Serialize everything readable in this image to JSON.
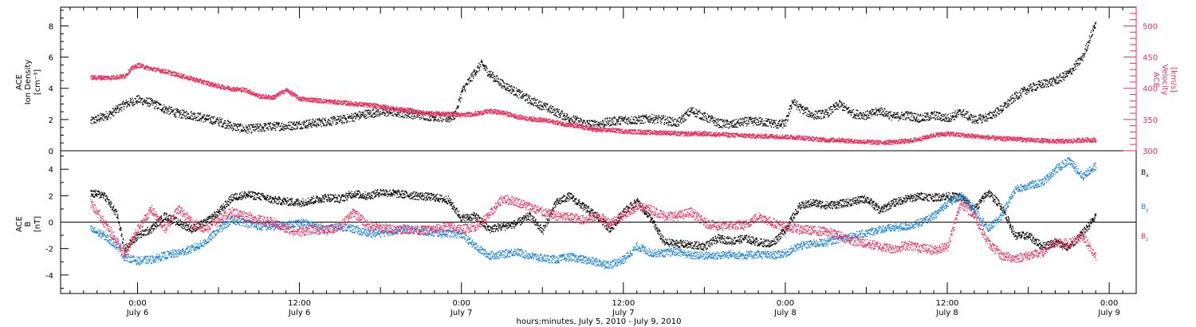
{
  "chart_data": [
    {
      "type": "scatter",
      "panel": "plasma",
      "ylabel_left": [
        "ACE",
        "Ion Density",
        "[cm⁻³]"
      ],
      "ylabel_right": [
        "ACE",
        "Velocity",
        "[km/s]"
      ],
      "y_left_lim": [
        0,
        9.2
      ],
      "y_left_ticks": [
        0,
        2,
        4,
        6,
        8
      ],
      "y_right_lim": [
        300,
        530
      ],
      "y_right_ticks": [
        300,
        350,
        400,
        450,
        500
      ],
      "series": [
        {
          "name": "Ion Density",
          "axis": "left",
          "color": "#000000",
          "x_hours": [
            -3.5,
            -2,
            -1,
            0,
            1,
            2,
            3,
            4,
            5,
            6,
            7,
            8,
            9,
            10,
            11,
            12,
            13,
            14,
            15,
            16,
            17,
            18,
            19,
            20,
            21,
            22,
            23,
            23.5,
            24,
            25,
            25.5,
            26,
            27,
            28,
            29,
            30,
            31,
            32,
            33,
            34,
            35,
            36,
            37,
            38,
            39,
            40,
            41,
            42,
            43,
            44,
            45,
            46,
            47,
            47.5,
            48,
            48.5,
            49,
            50,
            51,
            52,
            53,
            54,
            55,
            56,
            57,
            58,
            59,
            60,
            61,
            62,
            63,
            64,
            65,
            66,
            67,
            68,
            69,
            70,
            71
          ],
          "values": [
            1.9,
            2.4,
            3.0,
            3.3,
            3.1,
            2.7,
            2.4,
            2.3,
            2.1,
            1.9,
            1.6,
            1.4,
            1.5,
            1.6,
            1.6,
            1.7,
            1.8,
            1.9,
            2.0,
            2.2,
            2.4,
            2.5,
            2.5,
            2.4,
            2.3,
            2.2,
            2.1,
            2.3,
            3.8,
            5.1,
            5.6,
            5.0,
            4.3,
            3.8,
            3.3,
            2.9,
            2.5,
            2.1,
            1.8,
            1.7,
            1.9,
            2.0,
            2.0,
            2.1,
            2.0,
            1.8,
            2.6,
            2.2,
            1.8,
            1.7,
            1.9,
            1.9,
            1.8,
            1.7,
            1.8,
            3.2,
            2.8,
            2.3,
            2.4,
            3.0,
            2.4,
            2.3,
            2.6,
            2.2,
            2.3,
            2.1,
            2.3,
            2.1,
            2.5,
            2.0,
            2.2,
            2.7,
            3.5,
            4.0,
            4.3,
            4.5,
            5.0,
            6.0,
            8.3
          ]
        },
        {
          "name": "Velocity",
          "axis": "right",
          "color": "#e8325f",
          "x_hours": [
            -3.5,
            -2,
            -1,
            -0.5,
            0,
            1,
            2,
            3,
            4,
            5,
            6,
            7,
            8,
            9,
            10,
            11,
            12,
            13,
            14,
            15,
            16,
            17,
            18,
            19,
            20,
            21,
            22,
            23,
            24,
            25,
            26,
            27,
            28,
            29,
            30,
            31,
            32,
            33,
            34,
            35,
            36,
            37,
            38,
            39,
            40,
            41,
            42,
            43,
            44,
            45,
            46,
            47,
            48,
            49,
            50,
            51,
            52,
            53,
            54,
            55,
            56,
            57,
            58,
            59,
            60,
            61,
            62,
            63,
            64,
            65,
            66,
            67,
            68,
            69,
            70,
            71
          ],
          "values": [
            418,
            418,
            420,
            432,
            438,
            432,
            428,
            422,
            416,
            410,
            404,
            400,
            398,
            388,
            386,
            398,
            384,
            382,
            380,
            378,
            376,
            374,
            372,
            368,
            366,
            362,
            360,
            360,
            358,
            360,
            364,
            362,
            356,
            352,
            350,
            346,
            342,
            338,
            334,
            334,
            332,
            331,
            330,
            330,
            328,
            328,
            328,
            327,
            326,
            325,
            324,
            324,
            323,
            322,
            320,
            318,
            318,
            316,
            315,
            314,
            315,
            316,
            320,
            326,
            328,
            326,
            324,
            322,
            320,
            320,
            318,
            317,
            316,
            316,
            318,
            318
          ]
        }
      ]
    },
    {
      "type": "scatter",
      "panel": "magnetic-field",
      "ylabel_left": [
        "ACE",
        "B",
        "[nT]"
      ],
      "y_lim": [
        -5.4,
        5.4
      ],
      "y_ticks": [
        -4,
        -2,
        0,
        2,
        4
      ],
      "series": [
        {
          "name": "Bx",
          "label_main": "B",
          "label_sub": "x",
          "color": "#000000",
          "x_hours": [
            -3.5,
            -2.5,
            -1.5,
            -1,
            0,
            1,
            2,
            3,
            4,
            5,
            6,
            7,
            8,
            9,
            10,
            11,
            12,
            13,
            14,
            15,
            16,
            17,
            18,
            19,
            20,
            21,
            22,
            23,
            24,
            25,
            26,
            27,
            28,
            29,
            30,
            31,
            32,
            33,
            34,
            35,
            36,
            37,
            38,
            39,
            40,
            41,
            42,
            43,
            44,
            45,
            46,
            47,
            48,
            49,
            50,
            51,
            52,
            53,
            54,
            55,
            56,
            57,
            58,
            59,
            60,
            61,
            62,
            63,
            64,
            65,
            66,
            67,
            68,
            69,
            70,
            71
          ],
          "values": [
            2.2,
            2.1,
            0.5,
            -2.0,
            -1.0,
            -0.5,
            0.5,
            0.0,
            -0.5,
            0.0,
            0.8,
            1.9,
            2.1,
            2.0,
            1.7,
            1.6,
            1.5,
            1.7,
            1.9,
            1.8,
            2.2,
            2.0,
            2.3,
            2.2,
            2.1,
            2.0,
            1.9,
            1.7,
            0.3,
            0.5,
            -0.5,
            -0.3,
            -0.1,
            0.5,
            -0.6,
            1.5,
            2.0,
            1.2,
            0.5,
            -0.5,
            0.8,
            1.6,
            0.3,
            -1.5,
            -1.6,
            -1.7,
            -1.8,
            -1.2,
            -1.4,
            -1.2,
            -1.5,
            -1.6,
            -0.5,
            1.2,
            1.5,
            1.3,
            1.4,
            1.6,
            1.8,
            0.9,
            1.5,
            1.8,
            2.0,
            1.9,
            2.0,
            1.9,
            1.0,
            2.3,
            1.2,
            -1.0,
            -1.0,
            -1.8,
            -1.5,
            -1.9,
            -0.8,
            0.5
          ]
        },
        {
          "name": "By",
          "label_main": "B",
          "label_sub": "y",
          "color": "#1a82d6",
          "x_hours": [
            -3.5,
            -2.5,
            -1.5,
            -1,
            0,
            1,
            2,
            3,
            4,
            5,
            6,
            7,
            8,
            9,
            10,
            11,
            12,
            13,
            14,
            15,
            16,
            17,
            18,
            19,
            20,
            21,
            22,
            23,
            24,
            25,
            26,
            27,
            28,
            29,
            30,
            31,
            32,
            33,
            34,
            35,
            36,
            37,
            38,
            39,
            40,
            41,
            42,
            43,
            44,
            45,
            46,
            47,
            48,
            49,
            50,
            51,
            52,
            53,
            54,
            55,
            56,
            57,
            58,
            59,
            60,
            61,
            62,
            63,
            64,
            65,
            66,
            67,
            68,
            69,
            70,
            71
          ],
          "values": [
            -0.5,
            -1.0,
            -1.8,
            -2.6,
            -2.9,
            -2.8,
            -2.5,
            -2.3,
            -2.0,
            -1.5,
            -0.5,
            0.2,
            0.0,
            -0.3,
            -0.3,
            -0.2,
            0.0,
            -0.2,
            -0.5,
            -0.3,
            -0.5,
            -0.8,
            -0.8,
            -0.6,
            -0.5,
            -0.6,
            -0.8,
            -0.8,
            -0.9,
            -1.8,
            -2.5,
            -2.4,
            -2.2,
            -2.5,
            -2.7,
            -2.8,
            -2.6,
            -2.8,
            -3.0,
            -3.2,
            -2.8,
            -1.8,
            -2.3,
            -2.3,
            -2.2,
            -2.5,
            -2.5,
            -2.5,
            -2.4,
            -2.5,
            -2.4,
            -2.5,
            -2.3,
            -1.8,
            -1.6,
            -1.5,
            -1.2,
            -1.0,
            -0.8,
            -0.5,
            -0.4,
            -0.3,
            0.0,
            0.5,
            1.5,
            2.0,
            1.0,
            -0.5,
            0.5,
            2.5,
            2.8,
            3.0,
            4.0,
            4.7,
            3.5,
            4.3
          ]
        },
        {
          "name": "Bz",
          "label_main": "B",
          "label_sub": "z",
          "color": "#e8325f",
          "x_hours": [
            -3.5,
            -2.5,
            -1.5,
            -1,
            0,
            1,
            2,
            3,
            4,
            5,
            6,
            7,
            8,
            9,
            10,
            11,
            12,
            13,
            14,
            15,
            16,
            17,
            18,
            19,
            20,
            21,
            22,
            23,
            24,
            25,
            26,
            27,
            28,
            29,
            30,
            31,
            32,
            33,
            34,
            35,
            36,
            37,
            38,
            39,
            40,
            41,
            42,
            43,
            44,
            45,
            46,
            47,
            48,
            49,
            50,
            51,
            52,
            53,
            54,
            55,
            56,
            57,
            58,
            59,
            60,
            61,
            62,
            63,
            64,
            65,
            66,
            67,
            68,
            69,
            70,
            71
          ],
          "values": [
            1.5,
            0.0,
            -1.5,
            -2.5,
            -0.5,
            1.0,
            -0.5,
            1.0,
            0.0,
            -0.5,
            0.3,
            0.8,
            0.5,
            0.2,
            0.0,
            -0.5,
            -0.7,
            -0.5,
            -0.6,
            -0.3,
            0.8,
            -0.2,
            -0.4,
            -0.5,
            -0.5,
            -0.6,
            -0.5,
            -0.3,
            -0.5,
            -0.3,
            0.5,
            1.8,
            1.6,
            1.2,
            0.8,
            0.5,
            0.4,
            0.2,
            0.5,
            0.0,
            0.6,
            1.2,
            1.0,
            0.5,
            0.5,
            0.8,
            0.0,
            -0.3,
            -0.2,
            -0.2,
            0.5,
            0.0,
            -0.3,
            -0.5,
            -0.6,
            -0.7,
            -1.0,
            -1.4,
            -1.6,
            -1.8,
            -2.0,
            -1.7,
            -1.9,
            -2.1,
            -1.8,
            1.5,
            0.5,
            -1.5,
            -2.5,
            -2.7,
            -2.5,
            -2.3,
            -1.5,
            -1.6,
            -1.0,
            -2.7
          ]
        }
      ]
    }
  ],
  "time_axis": {
    "xlim_hours": [
      -5.7,
      74
    ],
    "major_ticks": [
      {
        "h": 0,
        "time": "0:00",
        "date": "July 6"
      },
      {
        "h": 12,
        "time": "12:00",
        "date": "July 6"
      },
      {
        "h": 24,
        "time": "0:00",
        "date": "July 7"
      },
      {
        "h": 36,
        "time": "12:00",
        "date": "July 7"
      },
      {
        "h": 48,
        "time": "0:00",
        "date": "July 8"
      },
      {
        "h": 60,
        "time": "12:00",
        "date": "July 8"
      },
      {
        "h": 72,
        "time": "0:00",
        "date": "July 9"
      }
    ],
    "xlabel": "hours:minutes, July  5, 2010 - July  9, 2010"
  }
}
